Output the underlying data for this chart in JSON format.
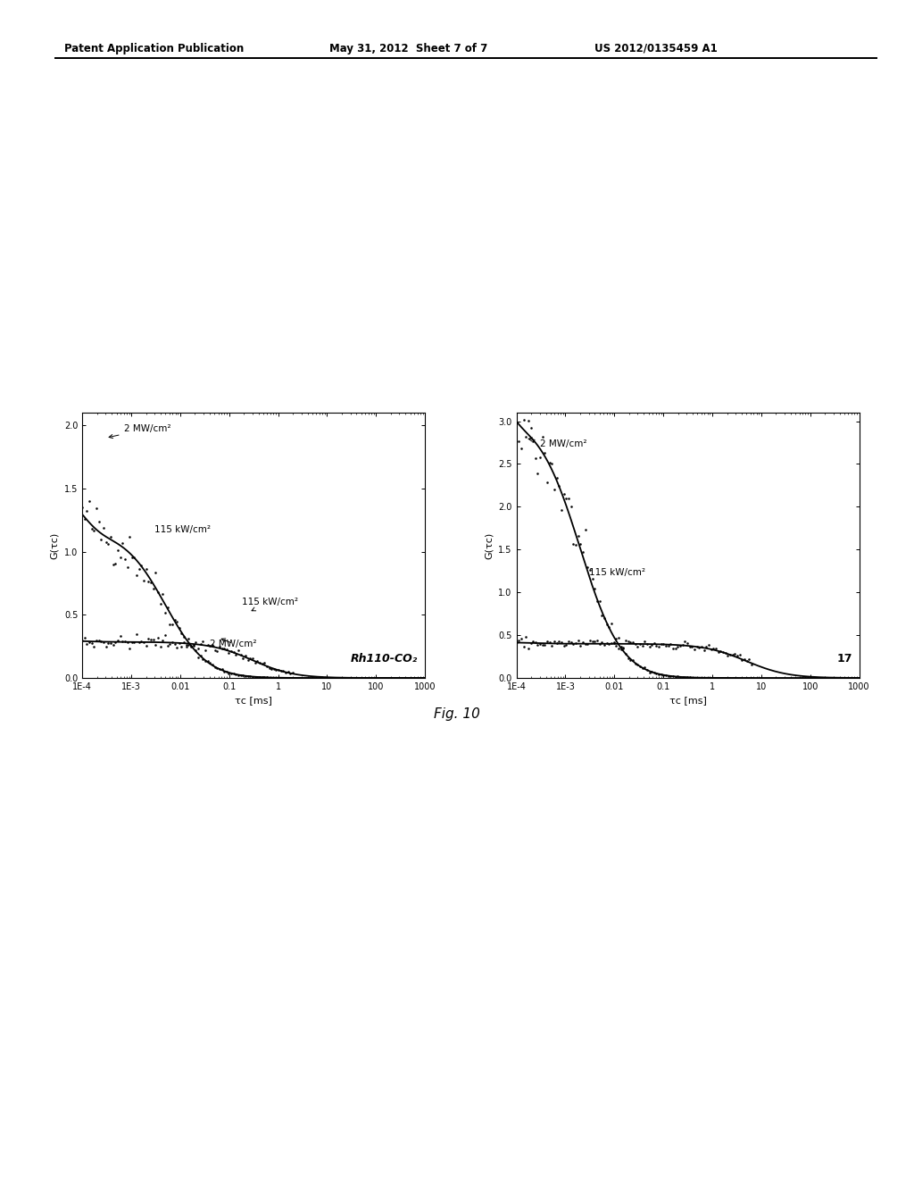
{
  "header_left": "Patent Application Publication",
  "header_mid": "May 31, 2012  Sheet 7 of 7",
  "header_right": "US 2012/0135459 A1",
  "fig_caption": "Fig. 10",
  "plot1_ylabel": "G(τc)",
  "plot1_xlabel": "τc [ms]",
  "plot1_label_high_upper": "2 MW/cm²",
  "plot1_label_low_upper": "115 kW/cm²",
  "plot1_label_low_lower": "115 kW/cm²",
  "plot1_label_high_lower": "2 MW/cm²",
  "plot1_annotation": "Rh110-CO₂",
  "plot1_ylim": [
    0.0,
    2.1
  ],
  "plot1_yticks": [
    0.0,
    0.5,
    1.0,
    1.5,
    2.0
  ],
  "plot2_ylabel": "G(τc)",
  "plot2_xlabel": "τc [ms]",
  "plot2_label_high": "2 MW/cm²",
  "plot2_label_low": "115 kW/cm²",
  "plot2_annotation": "17",
  "plot2_ylim": [
    0.0,
    3.1
  ],
  "plot2_yticks": [
    0.0,
    0.5,
    1.0,
    1.5,
    2.0,
    2.5,
    3.0
  ],
  "xtick_labels": [
    "1E-4",
    "1E-3",
    "0.01",
    "0.1",
    "1",
    "10",
    "100",
    "1000"
  ],
  "xtick_vals": [
    0.0001,
    0.001,
    0.01,
    0.1,
    1,
    10,
    100,
    1000
  ],
  "bg_color": "#ffffff"
}
